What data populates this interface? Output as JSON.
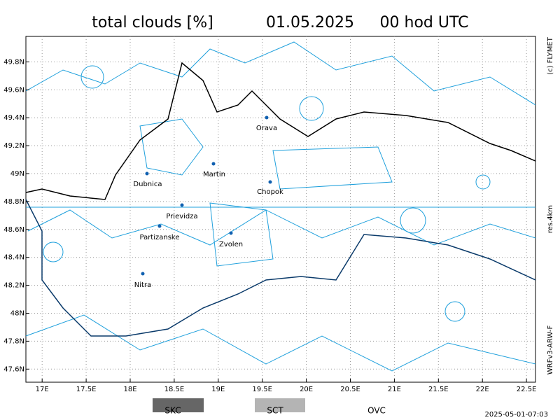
{
  "title": "total clouds [%]",
  "date": "01.05.2025",
  "time": "00 hod UTC",
  "copyright": "(c) FLYMET",
  "resolution": "res.4km",
  "model": "WRFv3-ARW-F",
  "timestamp": "2025-05-01-07:03",
  "lon_ticks": [
    {
      "value": 17,
      "label": "17E"
    },
    {
      "value": 17.5,
      "label": "17.5E"
    },
    {
      "value": 18,
      "label": "18E"
    },
    {
      "value": 18.5,
      "label": "18.5E"
    },
    {
      "value": 19,
      "label": "19E"
    },
    {
      "value": 19.5,
      "label": "19.5E"
    },
    {
      "value": 20,
      "label": "20E"
    },
    {
      "value": 20.5,
      "label": "20.5E"
    },
    {
      "value": 21,
      "label": "21E"
    },
    {
      "value": 21.5,
      "label": "21.5E"
    },
    {
      "value": 22,
      "label": "22E"
    },
    {
      "value": 22.5,
      "label": "22.5E"
    }
  ],
  "lat_ticks": [
    {
      "value": 49.8,
      "label": "49.8N"
    },
    {
      "value": 49.6,
      "label": "49.6N"
    },
    {
      "value": 49.4,
      "label": "49.4N"
    },
    {
      "value": 49.2,
      "label": "49.2N"
    },
    {
      "value": 49,
      "label": "49N"
    },
    {
      "value": 48.8,
      "label": "48.8N"
    },
    {
      "value": 48.6,
      "label": "48.6N"
    },
    {
      "value": 48.4,
      "label": "48.4N"
    },
    {
      "value": 48.2,
      "label": "48.2N"
    },
    {
      "value": 48,
      "label": "48N"
    },
    {
      "value": 47.8,
      "label": "47.8N"
    },
    {
      "value": 47.6,
      "label": "47.6N"
    }
  ],
  "cities": [
    "Orava",
    "Martin",
    "Dubnica",
    "Chopok",
    "Prievidza",
    "Partizanske",
    "Zvolen",
    "Nitra"
  ],
  "legend": [
    "SKC",
    "SCT",
    "OVC"
  ]
}
